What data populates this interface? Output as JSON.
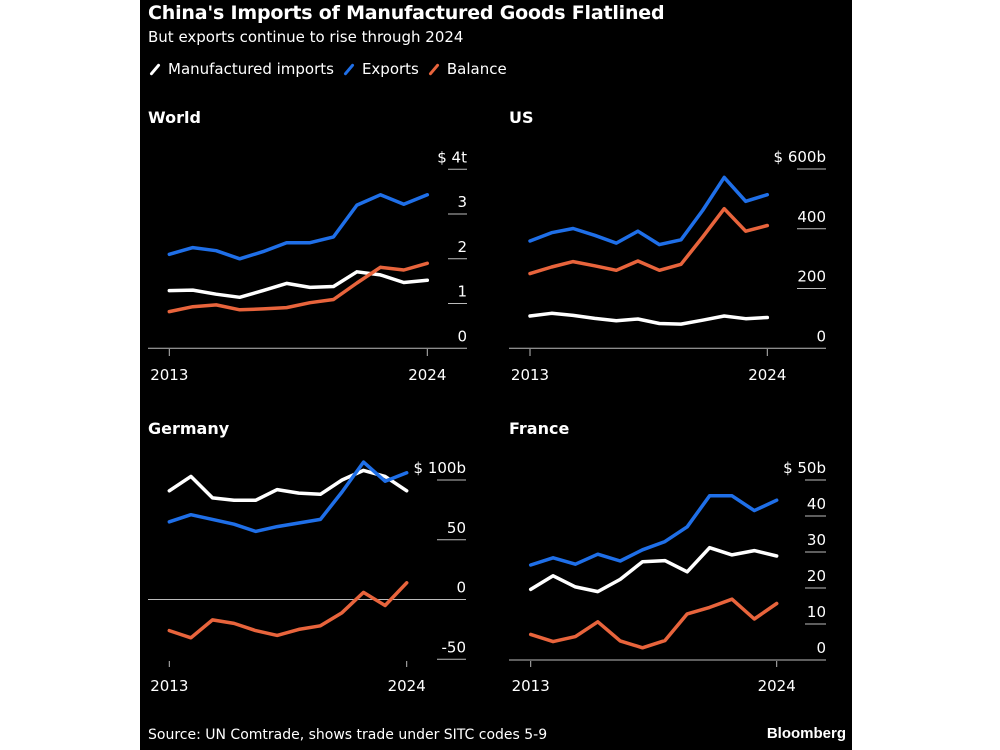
{
  "header": {
    "title": "China's Imports of Manufactured Goods Flatlined",
    "subtitle": "But exports continue to rise through 2024"
  },
  "legend": [
    {
      "label": "Manufactured imports",
      "color": "#ffffff"
    },
    {
      "label": "Exports",
      "color": "#1f6fe8"
    },
    {
      "label": "Balance",
      "color": "#e8643c"
    }
  ],
  "footer": {
    "source": "Source: UN Comtrade, shows trade under SITC codes 5-9",
    "logo": "Bloomberg"
  },
  "chart_data": [
    {
      "type": "line",
      "title": "World",
      "x": [
        2013,
        2014,
        2015,
        2016,
        2017,
        2018,
        2019,
        2020,
        2021,
        2022,
        2023,
        2024
      ],
      "xtick_labels": [
        "2013",
        "2024"
      ],
      "ylim": [
        0,
        4
      ],
      "yticks": [
        {
          "value": 4,
          "label": "$ 4t"
        },
        {
          "value": 3,
          "label": "3"
        },
        {
          "value": 2,
          "label": "2"
        },
        {
          "value": 1,
          "label": "1"
        },
        {
          "value": 0,
          "label": "0"
        }
      ],
      "series": [
        {
          "name": "Manufactured imports",
          "color": "#ffffff",
          "values": [
            1.29,
            1.3,
            1.21,
            1.14,
            1.29,
            1.45,
            1.36,
            1.38,
            1.71,
            1.64,
            1.47,
            1.52
          ]
        },
        {
          "name": "Exports",
          "color": "#1f6fe8",
          "values": [
            2.1,
            2.25,
            2.18,
            2.0,
            2.16,
            2.36,
            2.36,
            2.49,
            3.2,
            3.43,
            3.22,
            3.43
          ]
        },
        {
          "name": "Balance",
          "color": "#e8643c",
          "values": [
            0.82,
            0.93,
            0.97,
            0.86,
            0.88,
            0.91,
            1.02,
            1.09,
            1.46,
            1.81,
            1.75,
            1.9
          ]
        }
      ]
    },
    {
      "type": "line",
      "title": "US",
      "x": [
        2013,
        2014,
        2015,
        2016,
        2017,
        2018,
        2019,
        2020,
        2021,
        2022,
        2023,
        2024
      ],
      "xtick_labels": [
        "2013",
        "2024"
      ],
      "ylim": [
        0,
        600
      ],
      "yticks": [
        {
          "value": 600,
          "label": "$ 600b"
        },
        {
          "value": 400,
          "label": "400"
        },
        {
          "value": 200,
          "label": "200"
        },
        {
          "value": 0,
          "label": "0"
        }
      ],
      "series": [
        {
          "name": "Manufactured imports",
          "color": "#ffffff",
          "values": [
            108,
            117,
            110,
            100,
            92,
            98,
            83,
            81,
            94,
            108,
            99,
            103
          ]
        },
        {
          "name": "Exports",
          "color": "#1f6fe8",
          "values": [
            359,
            387,
            401,
            378,
            352,
            392,
            347,
            363,
            461,
            572,
            492,
            514
          ]
        },
        {
          "name": "Balance",
          "color": "#e8643c",
          "values": [
            250,
            272,
            290,
            276,
            261,
            292,
            261,
            281,
            372,
            467,
            392,
            411
          ]
        }
      ]
    },
    {
      "type": "line",
      "title": "Germany",
      "x": [
        2013,
        2014,
        2015,
        2016,
        2017,
        2018,
        2019,
        2020,
        2021,
        2022,
        2023,
        2024
      ],
      "xtick_labels": [
        "2013",
        "2024"
      ],
      "ylim": [
        -50,
        100
      ],
      "yticks": [
        {
          "value": 100,
          "label": "$ 100b"
        },
        {
          "value": 50,
          "label": "50"
        },
        {
          "value": 0,
          "label": "0"
        },
        {
          "value": -50,
          "label": "-50"
        }
      ],
      "series": [
        {
          "name": "Manufactured imports",
          "color": "#ffffff",
          "values": [
            91,
            103,
            85,
            83,
            83,
            92,
            89,
            88,
            100,
            108,
            103,
            91
          ]
        },
        {
          "name": "Exports",
          "color": "#1f6fe8",
          "values": [
            65,
            71,
            67,
            63,
            57,
            61,
            64,
            67,
            90,
            115,
            99,
            106
          ]
        },
        {
          "name": "Balance",
          "color": "#e8643c",
          "values": [
            -26,
            -32,
            -17,
            -20,
            -26,
            -30,
            -25,
            -22,
            -11,
            6,
            -5,
            14
          ]
        }
      ]
    },
    {
      "type": "line",
      "title": "France",
      "x": [
        2013,
        2014,
        2015,
        2016,
        2017,
        2018,
        2019,
        2020,
        2021,
        2022,
        2023,
        2024
      ],
      "xtick_labels": [
        "2013",
        "2024"
      ],
      "ylim": [
        0,
        50
      ],
      "yticks": [
        {
          "value": 50,
          "label": "$ 50b"
        },
        {
          "value": 40,
          "label": "40"
        },
        {
          "value": 30,
          "label": "30"
        },
        {
          "value": 20,
          "label": "20"
        },
        {
          "value": 10,
          "label": "10"
        },
        {
          "value": 0,
          "label": "0"
        }
      ],
      "series": [
        {
          "name": "Manufactured imports",
          "color": "#ffffff",
          "values": [
            19.6,
            23.4,
            20.3,
            19.0,
            22.4,
            27.3,
            27.6,
            24.5,
            31.2,
            29.2,
            30.4,
            28.9
          ]
        },
        {
          "name": "Exports",
          "color": "#1f6fe8",
          "values": [
            26.4,
            28.4,
            26.6,
            29.4,
            27.5,
            30.6,
            32.9,
            37.0,
            45.6,
            45.6,
            41.5,
            44.4
          ]
        },
        {
          "name": "Balance",
          "color": "#e8643c",
          "values": [
            7.1,
            5.1,
            6.5,
            10.6,
            5.3,
            3.4,
            5.4,
            12.8,
            14.6,
            16.9,
            11.4,
            15.7
          ]
        }
      ]
    }
  ]
}
